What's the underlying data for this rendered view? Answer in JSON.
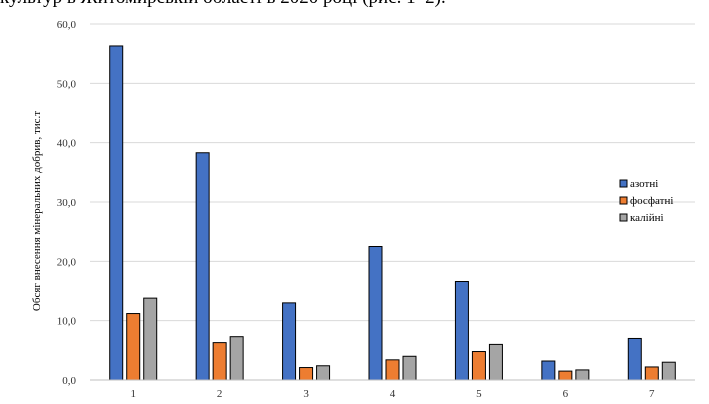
{
  "caption": "культур в Житомирській області в 2020 році (рис. 1–2).",
  "chart_data": {
    "type": "bar",
    "categories": [
      "1",
      "2",
      "3",
      "4",
      "5",
      "6",
      "7"
    ],
    "series": [
      {
        "name": "азотні",
        "values": [
          56.3,
          38.3,
          13.0,
          22.5,
          16.6,
          3.2,
          7.0
        ],
        "color": "#4472C4"
      },
      {
        "name": "фосфатні",
        "values": [
          11.2,
          6.3,
          2.1,
          3.4,
          4.8,
          1.5,
          2.2
        ],
        "color": "#ED7D31"
      },
      {
        "name": "калійні",
        "values": [
          13.8,
          7.3,
          2.4,
          4.0,
          6.0,
          1.7,
          3.0
        ],
        "color": "#A5A5A5"
      }
    ],
    "ylabel": "Обсяг внесення мінеральних добрив, тис.т",
    "xlabel": "",
    "ylim": [
      0,
      60
    ],
    "yticks": [
      "0,0",
      "10,0",
      "20,0",
      "30,0",
      "40,0",
      "50,0",
      "60,0"
    ],
    "grid": true,
    "legend_position": "right"
  }
}
